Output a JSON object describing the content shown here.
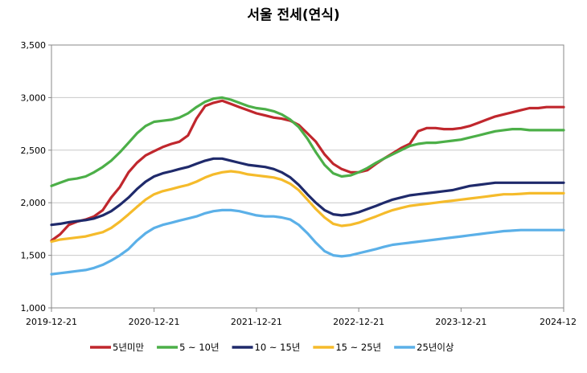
{
  "chart_data": {
    "type": "line",
    "title": "서울 전세(연식)",
    "xlabel": "",
    "ylabel": "",
    "ylim": [
      1000,
      3500
    ],
    "yticks": [
      "1,000",
      "1,500",
      "2,000",
      "2,500",
      "3,000",
      "3,500"
    ],
    "ytick_values": [
      1000,
      1500,
      2000,
      2500,
      3000,
      3500
    ],
    "xlim": [
      "2019-12-21",
      "2024-12-21"
    ],
    "xticks": [
      "2019-12-21",
      "2020-12-21",
      "2021-12-21",
      "2022-12-21",
      "2023-12-21",
      "2024-12"
    ],
    "grid": "horizontal",
    "legend_position": "bottom",
    "x": [
      "2019-12-21",
      "2020-01-21",
      "2020-02-21",
      "2020-03-21",
      "2020-04-21",
      "2020-05-21",
      "2020-06-21",
      "2020-07-21",
      "2020-08-21",
      "2020-09-21",
      "2020-10-21",
      "2020-11-21",
      "2020-12-21",
      "2021-01-21",
      "2021-02-21",
      "2021-03-21",
      "2021-04-21",
      "2021-05-21",
      "2021-06-21",
      "2021-07-21",
      "2021-08-21",
      "2021-09-21",
      "2021-10-21",
      "2021-11-21",
      "2021-12-21",
      "2022-01-21",
      "2022-02-21",
      "2022-03-21",
      "2022-04-21",
      "2022-05-21",
      "2022-06-21",
      "2022-07-21",
      "2022-08-21",
      "2022-09-21",
      "2022-10-21",
      "2022-11-21",
      "2022-12-21",
      "2023-01-21",
      "2023-02-21",
      "2023-03-21",
      "2023-04-21",
      "2023-05-21",
      "2023-06-21",
      "2023-07-21",
      "2023-08-21",
      "2023-09-21",
      "2023-10-21",
      "2023-11-21",
      "2023-12-21",
      "2024-01-21",
      "2024-02-21",
      "2024-03-21",
      "2024-04-21",
      "2024-05-21",
      "2024-06-21",
      "2024-07-21",
      "2024-08-21",
      "2024-09-21",
      "2024-10-21",
      "2024-11-21",
      "2024-12-21"
    ],
    "series": [
      {
        "name": "5년미만",
        "color": "#c0272d",
        "values": [
          1640,
          1700,
          1790,
          1820,
          1840,
          1870,
          1930,
          2050,
          2150,
          2290,
          2380,
          2450,
          2490,
          2530,
          2560,
          2580,
          2640,
          2800,
          2920,
          2950,
          2970,
          2940,
          2910,
          2880,
          2850,
          2830,
          2810,
          2800,
          2780,
          2740,
          2660,
          2580,
          2460,
          2370,
          2320,
          2290,
          2290,
          2310,
          2370,
          2420,
          2470,
          2520,
          2560,
          2680,
          2710,
          2710,
          2700,
          2700,
          2710,
          2730,
          2760,
          2790,
          2820,
          2840,
          2860,
          2880,
          2900,
          2900,
          2910,
          2910,
          2910
        ]
      },
      {
        "name": "5 ~ 10년",
        "color": "#4caf48",
        "values": [
          2160,
          2190,
          2220,
          2230,
          2250,
          2290,
          2340,
          2400,
          2480,
          2570,
          2660,
          2730,
          2770,
          2780,
          2790,
          2810,
          2850,
          2910,
          2960,
          2990,
          3000,
          2980,
          2950,
          2920,
          2900,
          2890,
          2870,
          2840,
          2790,
          2720,
          2610,
          2480,
          2360,
          2280,
          2250,
          2260,
          2290,
          2330,
          2380,
          2420,
          2460,
          2500,
          2540,
          2560,
          2570,
          2570,
          2580,
          2590,
          2600,
          2620,
          2640,
          2660,
          2680,
          2690,
          2700,
          2700,
          2690,
          2690,
          2690,
          2690,
          2690
        ]
      },
      {
        "name": "10 ~ 15년",
        "color": "#1f2a6b",
        "values": [
          1790,
          1800,
          1815,
          1825,
          1835,
          1850,
          1880,
          1920,
          1980,
          2050,
          2130,
          2200,
          2250,
          2280,
          2300,
          2320,
          2340,
          2370,
          2400,
          2420,
          2420,
          2400,
          2380,
          2360,
          2350,
          2340,
          2320,
          2290,
          2240,
          2170,
          2080,
          2000,
          1930,
          1890,
          1880,
          1890,
          1910,
          1940,
          1970,
          2000,
          2030,
          2050,
          2070,
          2080,
          2090,
          2100,
          2110,
          2120,
          2140,
          2160,
          2170,
          2180,
          2190,
          2190,
          2190,
          2190,
          2190,
          2190,
          2190,
          2190,
          2190
        ]
      },
      {
        "name": "15 ~ 25년",
        "color": "#f5bb2b",
        "values": [
          1630,
          1650,
          1660,
          1670,
          1680,
          1700,
          1720,
          1760,
          1820,
          1890,
          1960,
          2030,
          2080,
          2110,
          2130,
          2150,
          2170,
          2200,
          2240,
          2270,
          2290,
          2300,
          2290,
          2270,
          2260,
          2250,
          2240,
          2220,
          2180,
          2120,
          2030,
          1940,
          1860,
          1800,
          1780,
          1790,
          1810,
          1840,
          1870,
          1900,
          1930,
          1950,
          1970,
          1980,
          1990,
          2000,
          2010,
          2020,
          2030,
          2040,
          2050,
          2060,
          2070,
          2080,
          2080,
          2085,
          2090,
          2090,
          2090,
          2090,
          2090
        ]
      },
      {
        "name": "25년이상",
        "color": "#5bb0e8",
        "values": [
          1320,
          1330,
          1340,
          1350,
          1360,
          1380,
          1410,
          1450,
          1500,
          1560,
          1640,
          1710,
          1760,
          1790,
          1810,
          1830,
          1850,
          1870,
          1900,
          1920,
          1930,
          1930,
          1920,
          1900,
          1880,
          1870,
          1870,
          1860,
          1840,
          1790,
          1710,
          1620,
          1540,
          1500,
          1490,
          1500,
          1520,
          1540,
          1560,
          1580,
          1600,
          1610,
          1620,
          1630,
          1640,
          1650,
          1660,
          1670,
          1680,
          1690,
          1700,
          1710,
          1720,
          1730,
          1735,
          1740,
          1740,
          1740,
          1740,
          1740,
          1740
        ]
      }
    ]
  }
}
